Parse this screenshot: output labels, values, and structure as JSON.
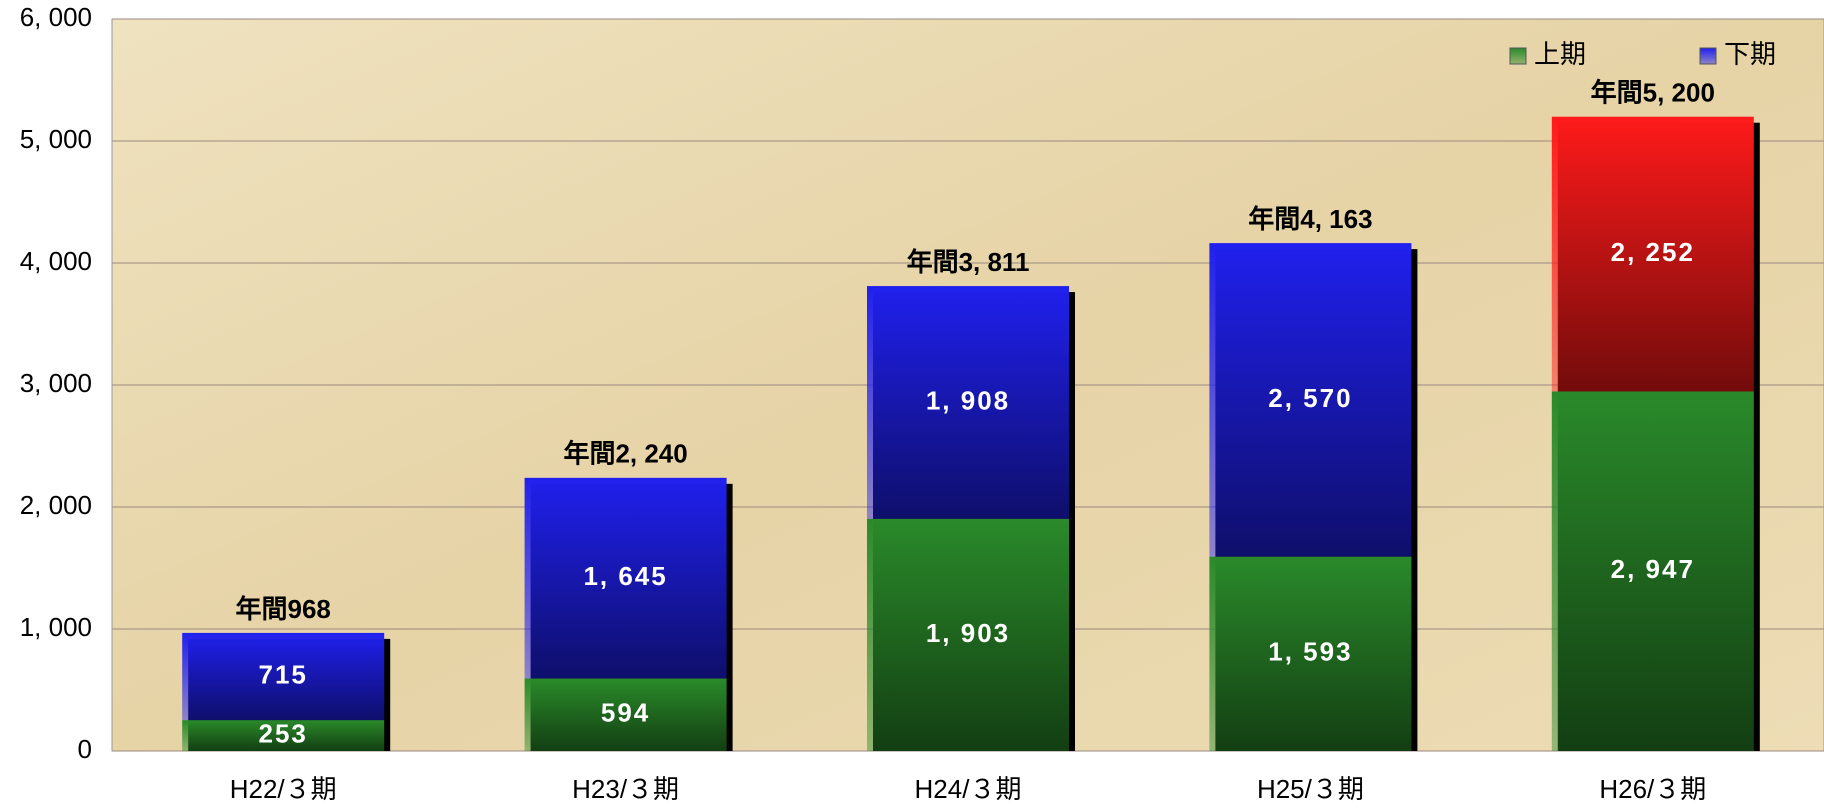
{
  "chart_data": {
    "type": "stacked_bar",
    "categories": [
      "H22/３期",
      "H23/３期",
      "H24/３期",
      "H25/３期",
      "H26/３期"
    ],
    "series": [
      {
        "name": "上期",
        "color": "#2a8a2a",
        "values": [
          253,
          594,
          1903,
          1593,
          2947
        ],
        "value_labels": [
          "253",
          "594",
          "1, 903",
          "1, 593",
          "2, 947"
        ]
      },
      {
        "name": "下期",
        "color": "#2020ee",
        "point_colors": [
          "#2020ee",
          "#2020ee",
          "#2020ee",
          "#2020ee",
          "#ff1a1a"
        ],
        "values": [
          715,
          1645,
          1908,
          2570,
          2252
        ],
        "value_labels": [
          "715",
          "1, 645",
          "1, 908",
          "2, 570",
          "2, 252"
        ]
      }
    ],
    "totals": [
      "年間968",
      "年間2, 240",
      "年間3, 811",
      "年間4, 163",
      "年間5, 200"
    ],
    "ylim": [
      0,
      6000
    ],
    "yticks": [
      0,
      {
        "value": 1000,
        "label": "1, 000"
      },
      {
        "value": 2000,
        "label": "2, 000"
      },
      {
        "value": 3000,
        "label": "3, 000"
      },
      {
        "value": 4000,
        "label": "4, 000"
      },
      {
        "value": 5000,
        "label": "5, 000"
      },
      {
        "value": 6000,
        "label": "6, 000"
      }
    ],
    "grid": true,
    "legend": "top-right"
  }
}
